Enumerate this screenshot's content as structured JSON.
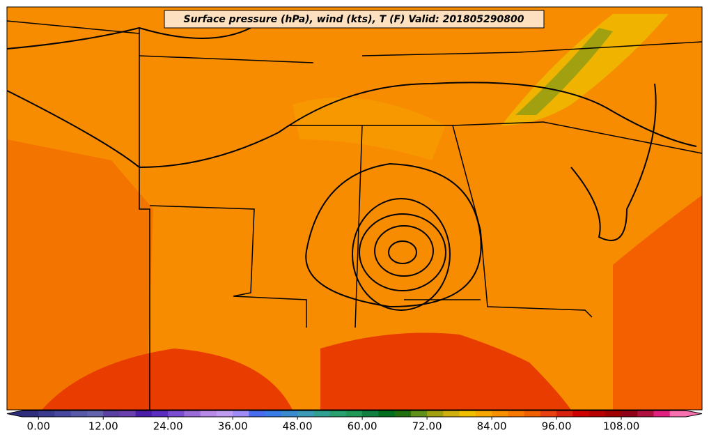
{
  "title": "Surface pressure (hPa), wind (kts), T (F) Valid: 201805290800",
  "colorbar": {
    "lim": [
      -3,
      120
    ],
    "ticks": [
      {
        "value": 0,
        "label": "0.00"
      },
      {
        "value": 12,
        "label": "12.00"
      },
      {
        "value": 24,
        "label": "24.00"
      },
      {
        "value": 36,
        "label": "36.00"
      },
      {
        "value": 48,
        "label": "48.00"
      },
      {
        "value": 60,
        "label": "60.00"
      },
      {
        "value": 72,
        "label": "72.00"
      },
      {
        "value": 84,
        "label": "84.00"
      },
      {
        "value": 96,
        "label": "96.00"
      },
      {
        "value": 108,
        "label": "108.00"
      }
    ],
    "colors": [
      "#2e2e7c",
      "#3a3a8e",
      "#4848a0",
      "#5858a8",
      "#6464ac",
      "#5a40a0",
      "#6a40b0",
      "#4a1ea8",
      "#5a2cc0",
      "#7a4cd0",
      "#9a6cd8",
      "#b88ae8",
      "#c09cf0",
      "#a08cf8",
      "#4a6cf0",
      "#3a7ce8",
      "#3a8ad0",
      "#3a9ab8",
      "#30a090",
      "#28a070",
      "#209858",
      "#108040",
      "#007020",
      "#207010",
      "#60901a",
      "#a0a010",
      "#d0b010",
      "#f0c000",
      "#f8a800",
      "#f89000",
      "#f87800",
      "#f06000",
      "#e84010",
      "#d82010",
      "#d00000",
      "#b80000",
      "#a00000",
      "#900018",
      "#b01040",
      "#e02080",
      "#f870b0"
    ]
  }
}
